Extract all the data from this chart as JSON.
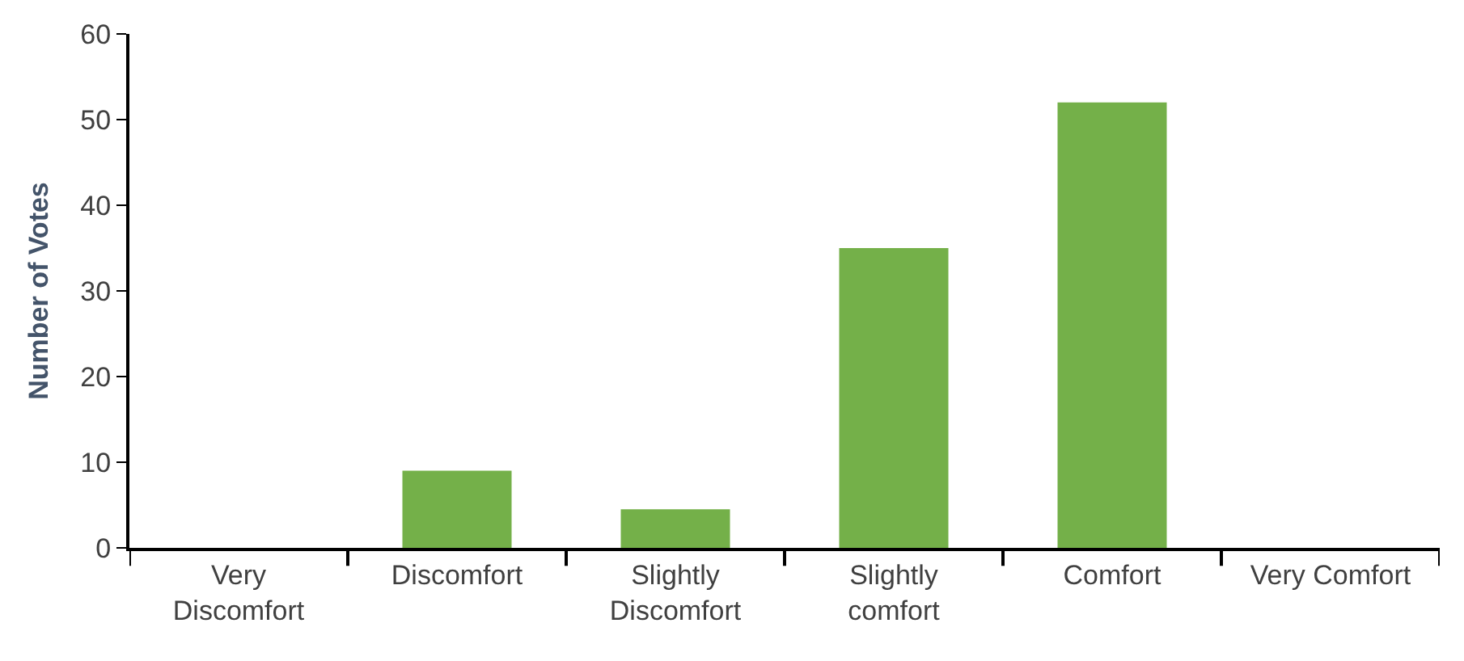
{
  "chart_data": {
    "type": "bar",
    "ylabel": "Number of Votes",
    "categories": [
      "Very Discomfort",
      "Discomfort",
      "Slightly Discomfort",
      "Slightly comfort",
      "Comfort",
      "Very Comfort"
    ],
    "values": [
      0,
      9,
      4.5,
      35,
      52,
      0
    ],
    "color": "#74b049",
    "ylim": [
      0,
      60
    ],
    "yticks": [
      0,
      10,
      20,
      30,
      40,
      50,
      60
    ]
  }
}
